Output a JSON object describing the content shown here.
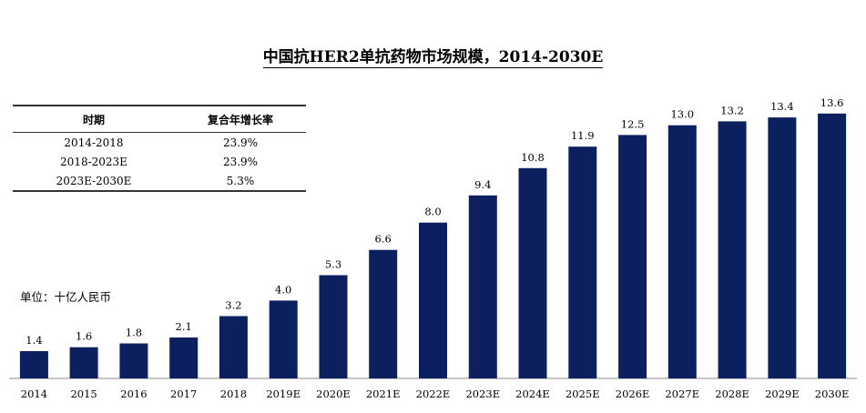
{
  "chart_data": {
    "type": "bar",
    "title": "中国抗HER2单抗药物市场规模，2014-2030E",
    "unit_label": "单位：十亿人民币",
    "categories": [
      "2014",
      "2015",
      "2016",
      "2017",
      "2018",
      "2019E",
      "2020E",
      "2021E",
      "2022E",
      "2023E",
      "2024E",
      "2025E",
      "2026E",
      "2027E",
      "2028E",
      "2029E",
      "2030E"
    ],
    "values": [
      1.4,
      1.6,
      1.8,
      2.1,
      3.2,
      4.0,
      5.3,
      6.6,
      8.0,
      9.4,
      10.8,
      11.9,
      12.5,
      13.0,
      13.2,
      13.4,
      13.6
    ],
    "value_labels": [
      "1.4",
      "1.6",
      "1.8",
      "2.1",
      "3.2",
      "4.0",
      "5.3",
      "6.6",
      "8.0",
      "9.4",
      "10.8",
      "11.9",
      "12.5",
      "13.0",
      "13.2",
      "13.4",
      "13.6"
    ],
    "bar_color": "#0c1f5e",
    "ylim": [
      0,
      14.2
    ],
    "grid": false
  },
  "table": {
    "headers": [
      "时期",
      "复合年增长率"
    ],
    "rows": [
      [
        "2014-2018",
        "23.9%"
      ],
      [
        "2018-2023E",
        "23.9%"
      ],
      [
        "2023E-2030E",
        "5.3%"
      ]
    ]
  }
}
